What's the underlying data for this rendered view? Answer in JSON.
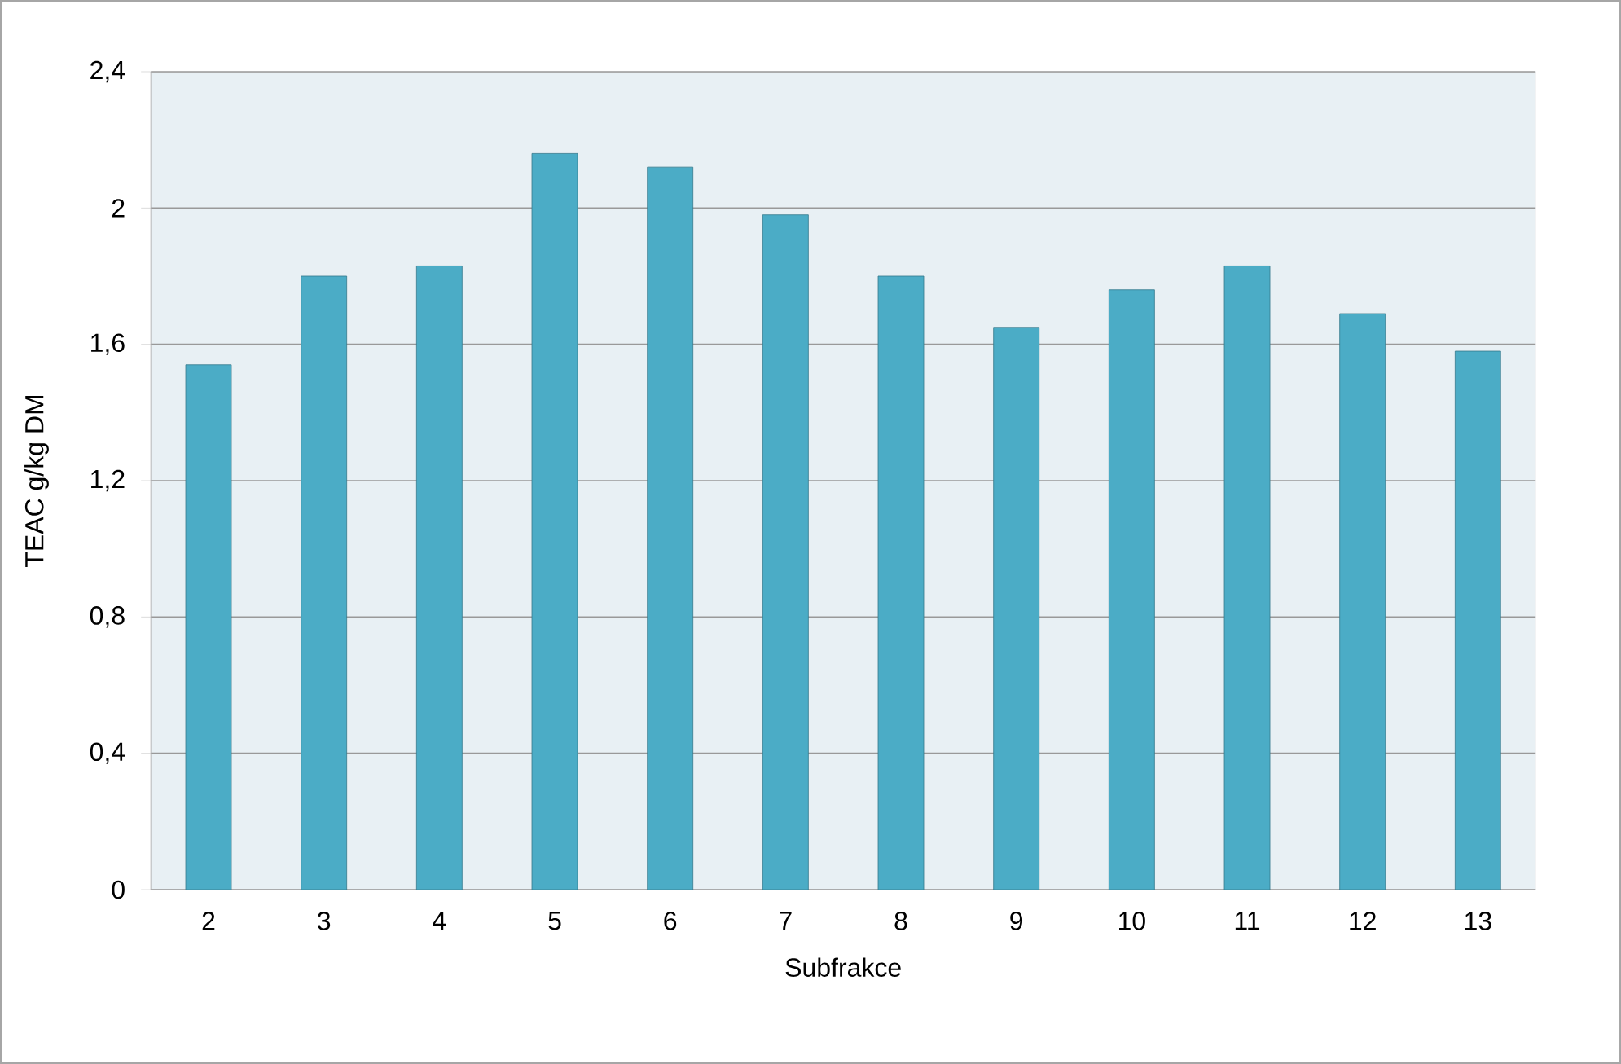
{
  "chart_data": {
    "type": "bar",
    "xlabel": "Subfrakce",
    "ylabel": "TEAC g/kg  DM",
    "categories": [
      "2",
      "3",
      "4",
      "5",
      "6",
      "7",
      "8",
      "9",
      "10",
      "11",
      "12",
      "13"
    ],
    "values": [
      1.54,
      1.8,
      1.83,
      2.16,
      2.12,
      1.98,
      1.8,
      1.65,
      1.76,
      1.83,
      1.69,
      1.58
    ],
    "color": "#4bacc6",
    "ylim": [
      0,
      2.4
    ],
    "yticks": [
      0,
      {
        "value": 0.4,
        "label": "0,4"
      },
      {
        "value": 0.8,
        "label": "0,8"
      },
      {
        "value": 1.2,
        "label": "1,2"
      },
      {
        "value": 1.6,
        "label": "1,6"
      },
      2,
      {
        "value": 2.4,
        "label": "2,4"
      }
    ],
    "grid": "y"
  }
}
